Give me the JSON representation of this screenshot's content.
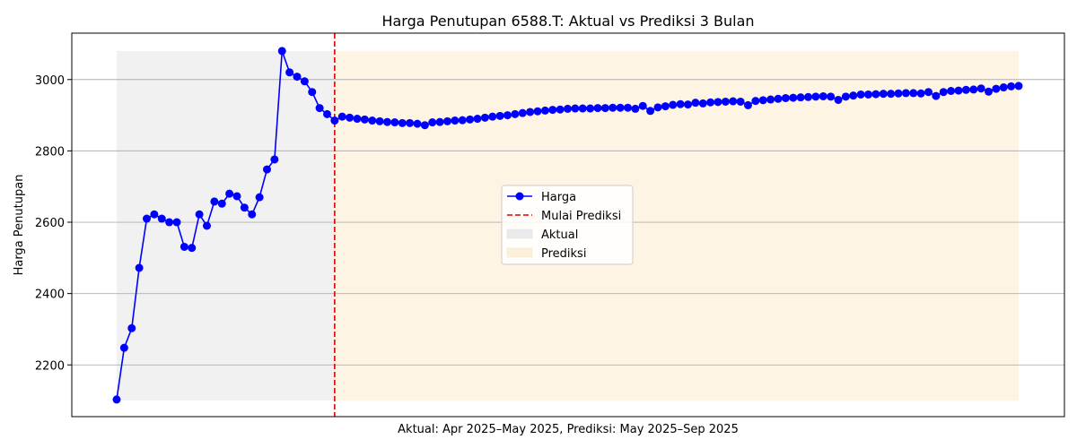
{
  "chart_data": {
    "type": "line",
    "title": "Harga Penutupan 6588.T: Aktual vs Prediksi 3 Bulan",
    "xlabel": "Aktual: Apr 2025–May 2025, Prediksi: May 2025–Sep 2025",
    "ylabel": "Harga Penutupan",
    "ylim": [
      2055,
      3130
    ],
    "yticks": [
      2200,
      2400,
      2600,
      2800,
      3000
    ],
    "grid": "horizontal",
    "legend_position": "center",
    "legend": {
      "harga": "Harga",
      "mulai": "Mulai Prediksi",
      "aktual": "Aktual",
      "prediksi": "Prediksi"
    },
    "prediction_start_index": 29,
    "last_index": 120,
    "shade_range": [
      2100,
      3080
    ],
    "colors": {
      "series": "#0000ff",
      "start_line": "#e00000",
      "aktual_shade": "#f1f1f1",
      "prediksi_shade": "#fdf4e4",
      "grid": "#b0b0b0"
    },
    "series": [
      {
        "name": "Harga",
        "values": [
          2103,
          2248,
          2303,
          2472,
          2610,
          2622,
          2610,
          2600,
          2600,
          2531,
          2528,
          2622,
          2590,
          2658,
          2652,
          2680,
          2673,
          2641,
          2622,
          2670,
          2748,
          2776,
          3080,
          3020,
          3008,
          2995,
          2965,
          2920,
          2903,
          2885,
          2896,
          2893,
          2890,
          2888,
          2885,
          2883,
          2881,
          2880,
          2878,
          2878,
          2876,
          2872,
          2880,
          2881,
          2883,
          2885,
          2886,
          2888,
          2890,
          2893,
          2896,
          2898,
          2900,
          2903,
          2906,
          2909,
          2911,
          2913,
          2915,
          2916,
          2918,
          2919,
          2919,
          2919,
          2920,
          2920,
          2921,
          2921,
          2921,
          2918,
          2926,
          2912,
          2922,
          2925,
          2929,
          2931,
          2930,
          2935,
          2933,
          2936,
          2937,
          2938,
          2939,
          2938,
          2928,
          2940,
          2942,
          2944,
          2946,
          2948,
          2949,
          2950,
          2951,
          2952,
          2953,
          2952,
          2943,
          2952,
          2955,
          2958,
          2958,
          2959,
          2960,
          2960,
          2961,
          2962,
          2962,
          2961,
          2965,
          2954,
          2965,
          2968,
          2969,
          2971,
          2972,
          2975,
          2966,
          2974,
          2978,
          2981,
          2982
        ]
      }
    ]
  }
}
